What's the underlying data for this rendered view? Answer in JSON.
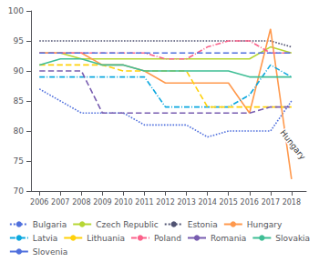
{
  "chart_data": {
    "type": "line",
    "x": [
      2006,
      2007,
      2008,
      2009,
      2010,
      2011,
      2012,
      2013,
      2014,
      2015,
      2016,
      2017,
      2018
    ],
    "xlim": [
      2005.6,
      2018.7
    ],
    "xticks": [
      2006,
      2007,
      2008,
      2009,
      2010,
      2011,
      2012,
      2013,
      2014,
      2015,
      2016,
      2017,
      2018
    ],
    "ylim": [
      70,
      100
    ],
    "yticks": [
      70,
      75,
      80,
      85,
      90,
      95,
      100
    ],
    "grid": false,
    "legend": "bottom",
    "series": [
      {
        "name": "Bulgaria",
        "line_style": "dotted",
        "values": [
          87,
          85,
          83,
          83,
          83,
          81,
          81,
          81,
          79,
          80,
          80,
          80,
          85
        ]
      },
      {
        "name": "Czech Republic",
        "line_style": "solid",
        "values": [
          93,
          93,
          92,
          92,
          92,
          92,
          92,
          92,
          92,
          92,
          92,
          94,
          93
        ]
      },
      {
        "name": "Estonia",
        "line_style": "dotted",
        "values": [
          95,
          95,
          95,
          95,
          95,
          95,
          95,
          95,
          95,
          95,
          95,
          95,
          94
        ]
      },
      {
        "name": "Hungary",
        "line_style": "solid",
        "values": [
          93,
          93,
          93,
          91,
          91,
          90,
          88,
          88,
          88,
          88,
          83,
          97,
          72
        ]
      },
      {
        "name": "Latvia",
        "line_style": "dashdot",
        "values": [
          89,
          89,
          89,
          89,
          89,
          89,
          84,
          84,
          84,
          84,
          86,
          91,
          89
        ]
      },
      {
        "name": "Lithuania",
        "line_style": "dashed",
        "values": [
          91,
          91,
          91,
          91,
          90,
          90,
          90,
          90,
          84,
          84,
          84,
          84,
          84
        ]
      },
      {
        "name": "Poland",
        "line_style": "dashdot",
        "values": [
          93,
          93,
          93,
          93,
          93,
          93,
          92,
          92,
          94,
          95,
          95,
          93,
          93
        ]
      },
      {
        "name": "Romania",
        "line_style": "dashed",
        "values": [
          90,
          90,
          90,
          83,
          83,
          83,
          83,
          83,
          83,
          83,
          83,
          84,
          84
        ]
      },
      {
        "name": "Slovakia",
        "line_style": "solid",
        "values": [
          91,
          92,
          92,
          91,
          91,
          90,
          90,
          90,
          90,
          90,
          89,
          89,
          89
        ]
      },
      {
        "name": "Slovenia",
        "line_style": "dashed",
        "values": [
          93,
          93,
          93,
          93,
          93,
          93,
          93,
          93,
          93,
          93,
          93,
          93,
          93
        ]
      }
    ],
    "annotations": [
      {
        "text": "Hungary",
        "x": 2017.55,
        "y": 80
      }
    ]
  }
}
